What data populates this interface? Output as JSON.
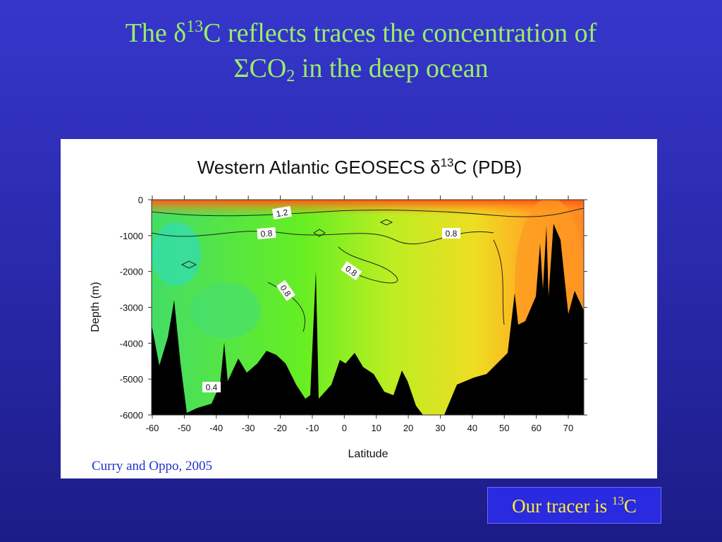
{
  "slide": {
    "title": {
      "line1_a": "The δ",
      "line1_sup": "13",
      "line1_b": "C reflects traces the concentration of",
      "line2_a": "ΣCO",
      "line2_sub": "2",
      "line2_b": " in the deep ocean"
    },
    "figure": {
      "title_a": "Western Atlantic GEOSECS δ",
      "title_sup": "13",
      "title_b": "C (PDB)",
      "y_label": "Depth (m)",
      "x_label": "Latitude",
      "yticks": [
        0,
        -1000,
        -2000,
        -3000,
        -4000,
        -5000,
        -6000
      ],
      "xticks": [
        -60,
        -50,
        -40,
        -30,
        -20,
        -10,
        0,
        10,
        20,
        30,
        40,
        50,
        60,
        70
      ],
      "contour_labels": [
        "1.2",
        "0.8",
        "0.8",
        "0.8",
        "0.8",
        "0.4"
      ],
      "caption": "Curry and Oppo, 2005"
    },
    "note": {
      "text": "Our tracer is ",
      "sup": "13",
      "tail": "C"
    }
  }
}
